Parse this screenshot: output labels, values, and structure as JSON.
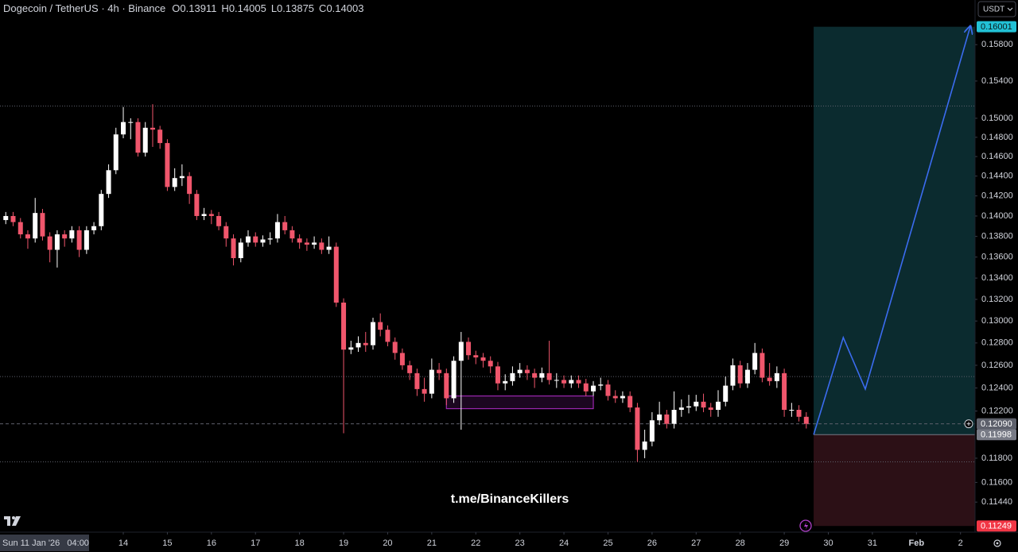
{
  "chart_data": {
    "type": "candlestick",
    "title": "Dogecoin / TetherUS · 4h · Binance",
    "legend_ohlc": [
      {
        "label": "O",
        "value": 0.13911
      },
      {
        "label": "H",
        "value": 0.14005
      },
      {
        "label": "L",
        "value": 0.13875
      },
      {
        "label": "C",
        "value": 0.14003
      }
    ],
    "currency_button": "USDT",
    "watermark": "t.me/BinanceKillers",
    "cursor_time_label": "Sun 11 Jan '26   04:00",
    "y_scale": "log",
    "xlim": [
      11.202,
      33.33
    ],
    "ylim": [
      0.112,
      0.16306
    ],
    "xticks": [
      14,
      15,
      16,
      17,
      18,
      19,
      20,
      21,
      22,
      23,
      24,
      25,
      26,
      27,
      28,
      29,
      30,
      31,
      {
        "value": 32,
        "label": "Feb"
      },
      {
        "value": 33,
        "label": "2"
      }
    ],
    "yticks": [
      {
        "value": 0.158,
        "label": "0.15800"
      },
      {
        "value": 0.154,
        "label": "0.15400"
      },
      {
        "value": 0.15,
        "label": "0.15000"
      },
      {
        "value": 0.148,
        "label": "0.14800"
      },
      {
        "value": 0.146,
        "label": "0.14600"
      },
      {
        "value": 0.144,
        "label": "0.14400"
      },
      {
        "value": 0.142,
        "label": "0.14200"
      },
      {
        "value": 0.14,
        "label": "0.14000"
      },
      {
        "value": 0.138,
        "label": "0.13800"
      },
      {
        "value": 0.136,
        "label": "0.13600"
      },
      {
        "value": 0.134,
        "label": "0.13400"
      },
      {
        "value": 0.132,
        "label": "0.13200"
      },
      {
        "value": 0.13,
        "label": "0.13000"
      },
      {
        "value": 0.128,
        "label": "0.12800"
      },
      {
        "value": 0.126,
        "label": "0.12600"
      },
      {
        "value": 0.124,
        "label": "0.12400"
      },
      {
        "value": 0.122,
        "label": "0.12200"
      },
      {
        "value": 0.118,
        "label": "0.11800"
      },
      {
        "value": 0.116,
        "label": "0.11600"
      },
      {
        "value": 0.1144,
        "label": "0.11440"
      }
    ],
    "candles": {
      "up_color": "#ffffff",
      "down_color": "#f0566c",
      "x": [
        11.333,
        11.5,
        11.667,
        11.833,
        12,
        12.167,
        12.333,
        12.5,
        12.667,
        12.833,
        13,
        13.167,
        13.333,
        13.5,
        13.667,
        13.833,
        14,
        14.167,
        14.333,
        14.5,
        14.667,
        14.833,
        15,
        15.167,
        15.333,
        15.5,
        15.667,
        15.833,
        16,
        16.167,
        16.333,
        16.5,
        16.667,
        16.833,
        17,
        17.167,
        17.333,
        17.5,
        17.667,
        17.833,
        18,
        18.167,
        18.333,
        18.5,
        18.667,
        18.833,
        19,
        19.167,
        19.333,
        19.5,
        19.667,
        19.833,
        20,
        20.167,
        20.333,
        20.5,
        20.667,
        20.833,
        21,
        21.167,
        21.333,
        21.5,
        21.667,
        21.833,
        22,
        22.167,
        22.333,
        22.5,
        22.667,
        22.833,
        23,
        23.167,
        23.333,
        23.5,
        23.667,
        23.833,
        24,
        24.167,
        24.333,
        24.5,
        24.667,
        24.833,
        25,
        25.167,
        25.333,
        25.5,
        25.667,
        25.833,
        26,
        26.167,
        26.333,
        26.5,
        26.667,
        26.833,
        27,
        27.167,
        27.333,
        27.5,
        27.667,
        27.833,
        28,
        28.167,
        28.333,
        28.5,
        28.667,
        28.833,
        29,
        29.167,
        29.333,
        29.5
      ],
      "open": [
        0.1396,
        0.14,
        0.1394,
        0.1382,
        0.1378,
        0.1403,
        0.138,
        0.1367,
        0.1382,
        0.1378,
        0.1386,
        0.1367,
        0.1386,
        0.139,
        0.1422,
        0.1446,
        0.1483,
        0.1496,
        0.1496,
        0.1464,
        0.149,
        0.1488,
        0.1474,
        0.1429,
        0.1438,
        0.144,
        0.1422,
        0.14,
        0.1402,
        0.14,
        0.139,
        0.1378,
        0.1359,
        0.1374,
        0.138,
        0.1374,
        0.1377,
        0.1378,
        0.1394,
        0.1386,
        0.1378,
        0.1374,
        0.1372,
        0.1374,
        0.1367,
        0.137,
        0.1317,
        0.1274,
        0.1276,
        0.128,
        0.1278,
        0.1299,
        0.1292,
        0.1281,
        0.1271,
        0.126,
        0.1253,
        0.1239,
        0.1235,
        0.1256,
        0.1253,
        0.1231,
        0.1264,
        0.1281,
        0.1269,
        0.1267,
        0.1264,
        0.1259,
        0.1244,
        0.1246,
        0.1253,
        0.1256,
        0.1253,
        0.1249,
        0.1253,
        0.1247,
        0.1247,
        0.1244,
        0.1247,
        0.1244,
        0.1237,
        0.1242,
        0.1243,
        0.1233,
        0.1231,
        0.1233,
        0.1223,
        0.1187,
        0.1194,
        0.1212,
        0.1217,
        0.1209,
        0.1221,
        0.1223,
        0.1224,
        0.1228,
        0.1223,
        0.1221,
        0.1228,
        0.1242,
        0.126,
        0.1244,
        0.1256,
        0.1271,
        0.1249,
        0.1246,
        0.1253,
        0.1221,
        0.1221,
        0.1215
      ],
      "high": [
        0.1404,
        0.1404,
        0.1398,
        0.1386,
        0.1418,
        0.1407,
        0.1384,
        0.1386,
        0.1386,
        0.139,
        0.139,
        0.139,
        0.1394,
        0.1426,
        0.1452,
        0.149,
        0.1512,
        0.15,
        0.15,
        0.1496,
        0.1515,
        0.1492,
        0.1478,
        0.1448,
        0.1452,
        0.1444,
        0.1426,
        0.1408,
        0.1406,
        0.1404,
        0.1394,
        0.1382,
        0.1378,
        0.1386,
        0.1384,
        0.1381,
        0.1384,
        0.1402,
        0.14,
        0.139,
        0.1382,
        0.1378,
        0.138,
        0.1378,
        0.138,
        0.1374,
        0.1321,
        0.1282,
        0.1286,
        0.129,
        0.1303,
        0.1307,
        0.1296,
        0.1285,
        0.1275,
        0.1264,
        0.1257,
        0.1249,
        0.1266,
        0.1262,
        0.1257,
        0.1268,
        0.129,
        0.1285,
        0.1273,
        0.1271,
        0.1268,
        0.1263,
        0.1252,
        0.1259,
        0.1262,
        0.126,
        0.1257,
        0.1258,
        0.1282,
        0.1253,
        0.1251,
        0.1251,
        0.1251,
        0.1248,
        0.1246,
        0.1249,
        0.1247,
        0.1238,
        0.1237,
        0.1237,
        0.1227,
        0.1204,
        0.1219,
        0.1228,
        0.1221,
        0.1237,
        0.123,
        0.1234,
        0.1234,
        0.1235,
        0.1227,
        0.1238,
        0.125,
        0.1266,
        0.1264,
        0.1262,
        0.128,
        0.1275,
        0.1262,
        0.1259,
        0.1257,
        0.1227,
        0.1225,
        0.1219
      ],
      "low": [
        0.1392,
        0.139,
        0.1378,
        0.1368,
        0.1374,
        0.1376,
        0.1355,
        0.135,
        0.137,
        0.1374,
        0.136,
        0.1363,
        0.1382,
        0.1386,
        0.1418,
        0.1442,
        0.1479,
        0.1478,
        0.146,
        0.146,
        0.147,
        0.1468,
        0.1425,
        0.1425,
        0.143,
        0.1412,
        0.1396,
        0.1396,
        0.1392,
        0.1386,
        0.137,
        0.1352,
        0.1355,
        0.137,
        0.137,
        0.137,
        0.1372,
        0.1374,
        0.1382,
        0.1374,
        0.1368,
        0.1366,
        0.1368,
        0.1363,
        0.1363,
        0.1313,
        0.1201,
        0.127,
        0.1272,
        0.1272,
        0.1274,
        0.1286,
        0.1277,
        0.1265,
        0.1256,
        0.1247,
        0.1233,
        0.1228,
        0.1231,
        0.1247,
        0.1225,
        0.1227,
        0.1204,
        0.1265,
        0.1261,
        0.1258,
        0.1253,
        0.1238,
        0.1238,
        0.1242,
        0.1249,
        0.1247,
        0.124,
        0.1245,
        0.1243,
        0.124,
        0.124,
        0.124,
        0.124,
        0.1233,
        0.1233,
        0.1238,
        0.1229,
        0.1227,
        0.1227,
        0.1219,
        0.1177,
        0.118,
        0.119,
        0.1208,
        0.1205,
        0.1205,
        0.1215,
        0.1218,
        0.122,
        0.1219,
        0.1215,
        0.1215,
        0.1224,
        0.1238,
        0.124,
        0.124,
        0.1252,
        0.1245,
        0.1242,
        0.124,
        0.1215,
        0.1215,
        0.1211,
        0.1205
      ],
      "close": [
        0.14,
        0.1394,
        0.1382,
        0.1378,
        0.1403,
        0.138,
        0.1367,
        0.1382,
        0.1378,
        0.1386,
        0.1367,
        0.1386,
        0.139,
        0.1422,
        0.1446,
        0.1483,
        0.1496,
        0.1496,
        0.1464,
        0.149,
        0.1488,
        0.1474,
        0.1429,
        0.1438,
        0.144,
        0.1422,
        0.14,
        0.1402,
        0.14,
        0.139,
        0.1378,
        0.1359,
        0.1374,
        0.138,
        0.1374,
        0.1377,
        0.1378,
        0.1394,
        0.1386,
        0.1378,
        0.1374,
        0.1372,
        0.1374,
        0.1367,
        0.137,
        0.1317,
        0.1274,
        0.1276,
        0.128,
        0.1278,
        0.1299,
        0.1292,
        0.1281,
        0.1271,
        0.126,
        0.1253,
        0.1239,
        0.1235,
        0.1256,
        0.1253,
        0.1231,
        0.1264,
        0.1281,
        0.1269,
        0.1267,
        0.1264,
        0.1259,
        0.1244,
        0.1246,
        0.1253,
        0.1256,
        0.1253,
        0.1249,
        0.1253,
        0.1247,
        0.1247,
        0.1244,
        0.1247,
        0.1244,
        0.1237,
        0.1242,
        0.1243,
        0.1233,
        0.1231,
        0.1233,
        0.1223,
        0.1187,
        0.1194,
        0.1212,
        0.1217,
        0.1209,
        0.1221,
        0.1223,
        0.1224,
        0.1228,
        0.1223,
        0.1221,
        0.1228,
        0.1242,
        0.126,
        0.1244,
        0.1256,
        0.1271,
        0.1249,
        0.1246,
        0.1253,
        0.1221,
        0.1221,
        0.1215,
        0.1209
      ]
    },
    "levels": {
      "color": "#5d606b",
      "values": [
        0.1513,
        0.125,
        0.1177
      ]
    },
    "current_price": {
      "value": 0.1209,
      "label": "0.12090",
      "color": "#5d606b"
    },
    "zone_box": {
      "color": "#9c27b0",
      "x": [
        21.333,
        24.667
      ],
      "y": [
        0.1222,
        0.1233
      ]
    },
    "position": {
      "x_start": 29.667,
      "entry": {
        "value": 0.11998,
        "label": "0.11998",
        "color": "#787b86"
      },
      "target": {
        "value": 0.16001,
        "label": "0.16001",
        "color": "#22c1d6",
        "zone_color": "#0b2b2f"
      },
      "stop": {
        "value": 0.11249,
        "label": "0.11249",
        "color": "#f23645",
        "zone_color": "#2c1016"
      }
    },
    "projection": {
      "color": "#3b6cf0",
      "x": [
        29.667,
        30.34,
        30.84,
        33.22
      ],
      "y": [
        0.11998,
        0.1285,
        0.1239,
        0.16
      ]
    }
  }
}
